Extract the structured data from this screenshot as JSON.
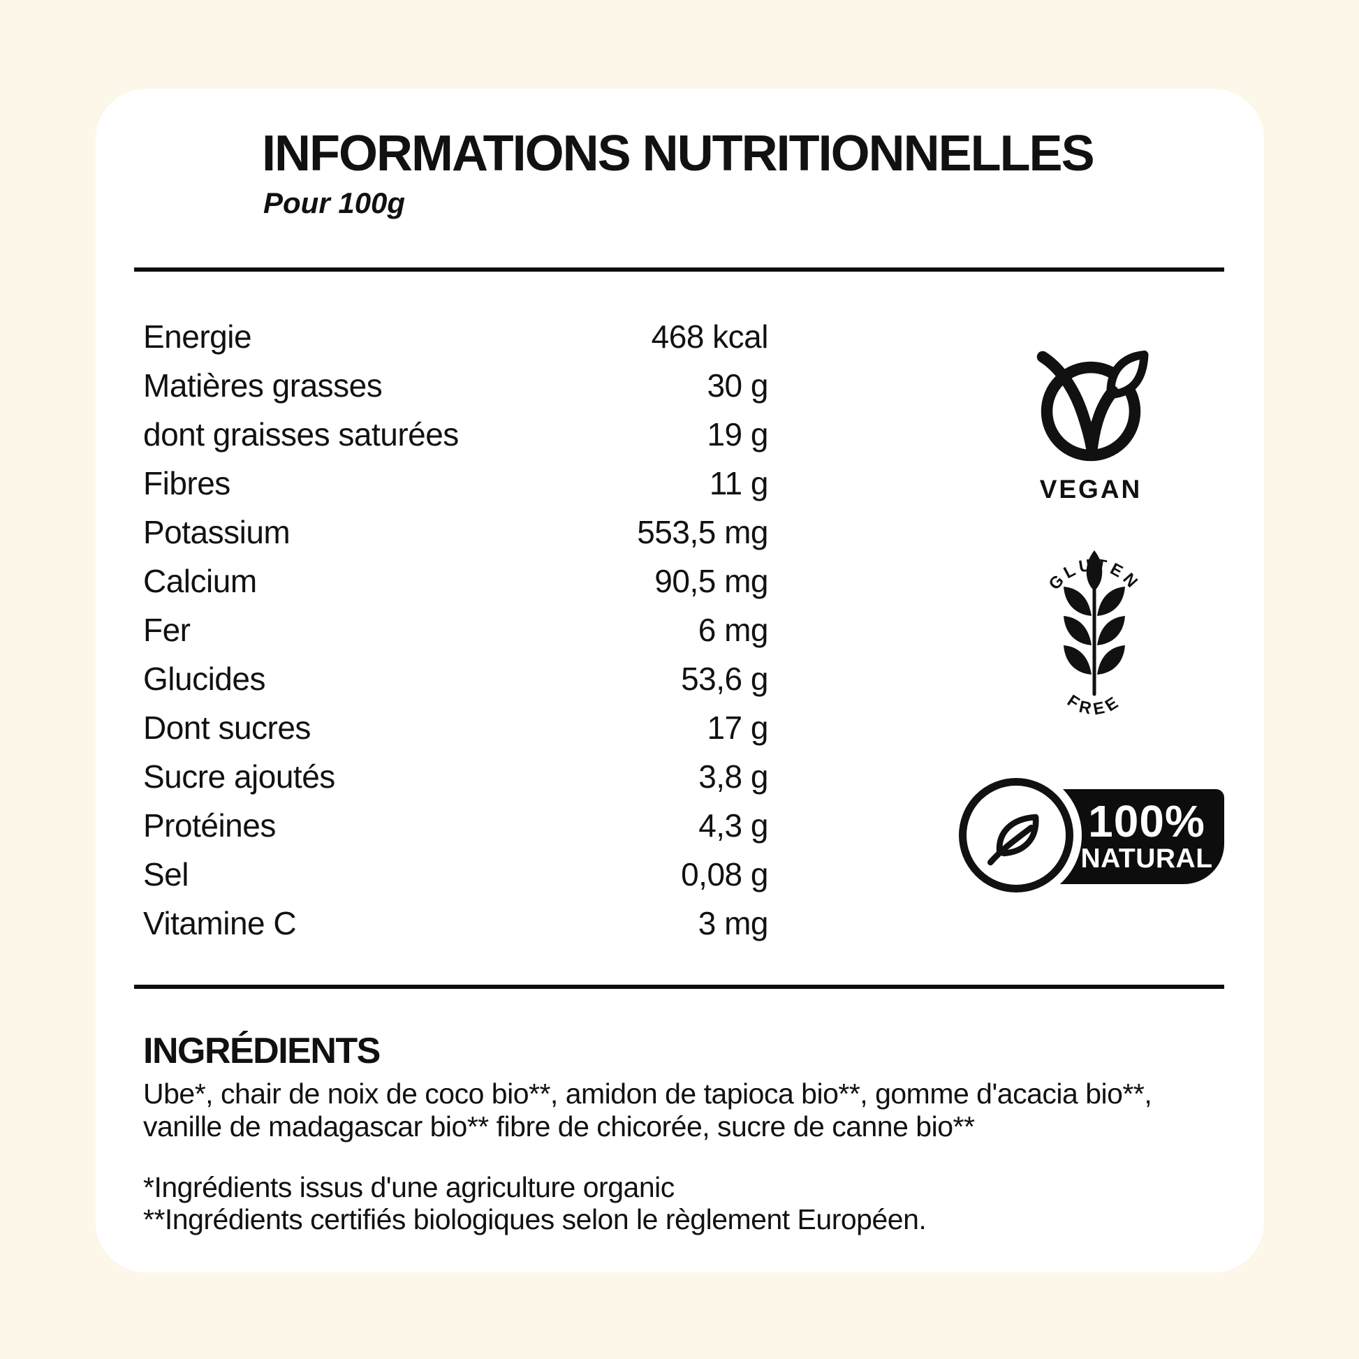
{
  "header": {
    "title": "INFORMATIONS NUTRITIONNELLES",
    "serving": "Pour 100g"
  },
  "nutrition": {
    "rows": [
      {
        "label": "Energie",
        "value": "468 kcal"
      },
      {
        "label": "Matières grasses",
        "value": "30 g"
      },
      {
        "label": "dont graisses saturées",
        "value": "19 g"
      },
      {
        "label": "Fibres",
        "value": "11 g"
      },
      {
        "label": "Potassium",
        "value": "553,5 mg"
      },
      {
        "label": "Calcium",
        "value": "90,5 mg"
      },
      {
        "label": "Fer",
        "value": "6 mg"
      },
      {
        "label": "Glucides",
        "value": "53,6 g"
      },
      {
        "label": "Dont sucres",
        "value": "17 g"
      },
      {
        "label": "Sucre ajoutés",
        "value": "3,8 g"
      },
      {
        "label": "Protéines",
        "value": "4,3 g"
      },
      {
        "label": "Sel",
        "value": "0,08 g"
      },
      {
        "label": "Vitamine C",
        "value": "3 mg"
      }
    ]
  },
  "badges": {
    "vegan": {
      "label": "VEGAN",
      "icon": "vegan-v-leaf-circle-icon"
    },
    "gluten_free": {
      "top": "GLUTEN",
      "bottom": "FREE",
      "icon": "wheat-icon"
    },
    "natural": {
      "line1": "100%",
      "line2": "NATURAL",
      "icon": "leaf-in-circle-icon"
    }
  },
  "ingredients": {
    "heading": "INGRÉDIENTS",
    "text": "Ube*, chair de noix de coco bio**, amidon de tapioca bio**, gomme d'acacia bio**, vanille de madagascar bio** fibre de chicorée, sucre de canne bio**",
    "footnotes": [
      "*Ingrédients issus d'une agriculture organic",
      "**Ingrédients certifiés biologiques selon le règlement Européen."
    ]
  },
  "colors": {
    "background": "#FCF7E8",
    "card": "#FFFFFF",
    "ink": "#111111"
  }
}
